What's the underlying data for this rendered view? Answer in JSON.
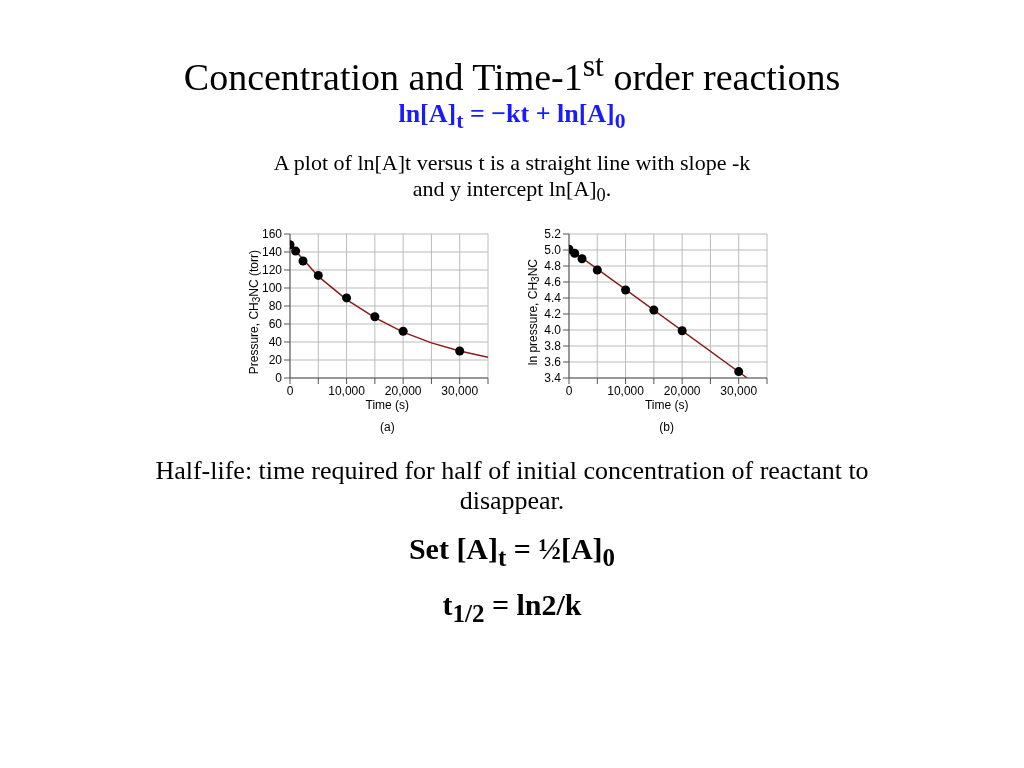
{
  "chart_data": [
    {
      "type": "scatter",
      "title": "Concentration and Time-1$^{st}$ order reactions",
      "subtitle": "ln[A]$_{t}$ = −kt + ln[A]$_{0}$",
      "annotations": [
        "A plot of ln[A]t versus t is a straight line with slope -k and y intercept ln[A]$_{0}$.",
        "(a)"
      ],
      "xlabel": "Time (s)",
      "ylabel": "Pressure, CH$_{3}$NC (torr)",
      "xlim": [
        0,
        35000
      ],
      "ylim": [
        0,
        160
      ],
      "xticks": [
        0,
        {
          "value": 5000,
          "label": null
        },
        {
          "value": 10000,
          "label": "10,000"
        },
        {
          "value": 15000,
          "label": null
        },
        {
          "value": 20000,
          "label": "20,000"
        },
        {
          "value": 25000,
          "label": null
        },
        {
          "value": 30000,
          "label": "30,000"
        },
        {
          "value": 35000,
          "label": null
        }
      ],
      "yticks": [
        0,
        20,
        40,
        60,
        80,
        100,
        120,
        140,
        160
      ],
      "grid": true,
      "marker": "circle",
      "series": [
        {
          "type": "line",
          "marker": "none",
          "color": "#8b1a1a",
          "x": [
            0,
            5000,
            10000,
            15000,
            20000,
            25000,
            30000,
            35000
          ],
          "values": [
            148,
            113,
            87,
            67,
            51,
            39,
            30,
            23
          ]
        },
        {
          "color": "#000000",
          "x": [
            0,
            1000,
            2300,
            5000,
            10000,
            15000,
            20000,
            30000
          ],
          "values": [
            148,
            141,
            130,
            114,
            89,
            68,
            52,
            30
          ]
        }
      ]
    },
    {
      "type": "scatter",
      "annotations": [
        "(b)",
        "Half-life: time required for half of initial concentration of reactant to disappear.",
        "Set [A]$_{t}$ = ½[A]$_{0}$",
        "t$_{1/2}$ = ln2/k"
      ],
      "xlabel": "Time (s)",
      "ylabel": "ln pressure, CH$_{3}$NC",
      "xlim": [
        0,
        35000
      ],
      "ylim": [
        3.4,
        5.2
      ],
      "xticks": [
        0,
        {
          "value": 5000,
          "label": null
        },
        {
          "value": 10000,
          "label": "10,000"
        },
        {
          "value": 15000,
          "label": null
        },
        {
          "value": 20000,
          "label": "20,000"
        },
        {
          "value": 25000,
          "label": null
        },
        {
          "value": 30000,
          "label": "30,000"
        },
        {
          "value": 35000,
          "label": null
        }
      ],
      "yticks": [
        3.4,
        3.6,
        3.8,
        {
          "value": 4,
          "label": "4.0"
        },
        4.2,
        4.4,
        4.6,
        4.8,
        {
          "value": 5,
          "label": "5.0"
        },
        5.2
      ],
      "grid": true,
      "marker": "circle",
      "series": [
        {
          "type": "line",
          "marker": "none",
          "color": "#8b1a1a",
          "x": [
            0,
            31500
          ],
          "values": [
            5.02,
            3.4
          ]
        },
        {
          "color": "#000000",
          "x": [
            0,
            1000,
            2300,
            5000,
            10000,
            15000,
            20000,
            30000
          ],
          "values": [
            5.01,
            4.96,
            4.89,
            4.75,
            4.5,
            4.25,
            3.99,
            3.48
          ]
        }
      ]
    }
  ]
}
